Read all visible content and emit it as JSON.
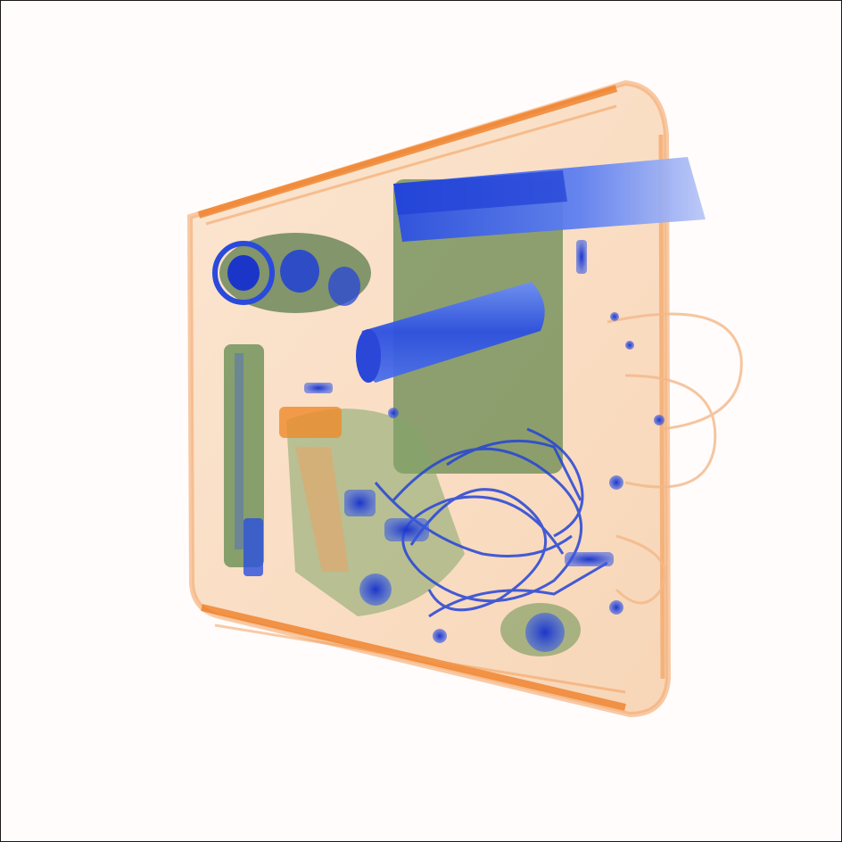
{
  "image": {
    "kind": "xray-scan",
    "description_colors": {
      "background": "#fffcfb",
      "case_fill": "#f9d7b8",
      "case_edge": "#f07a1e",
      "organic": "#4f7f3e",
      "metal": "#1f3fd6",
      "metal_light": "#5d7ff0"
    }
  }
}
